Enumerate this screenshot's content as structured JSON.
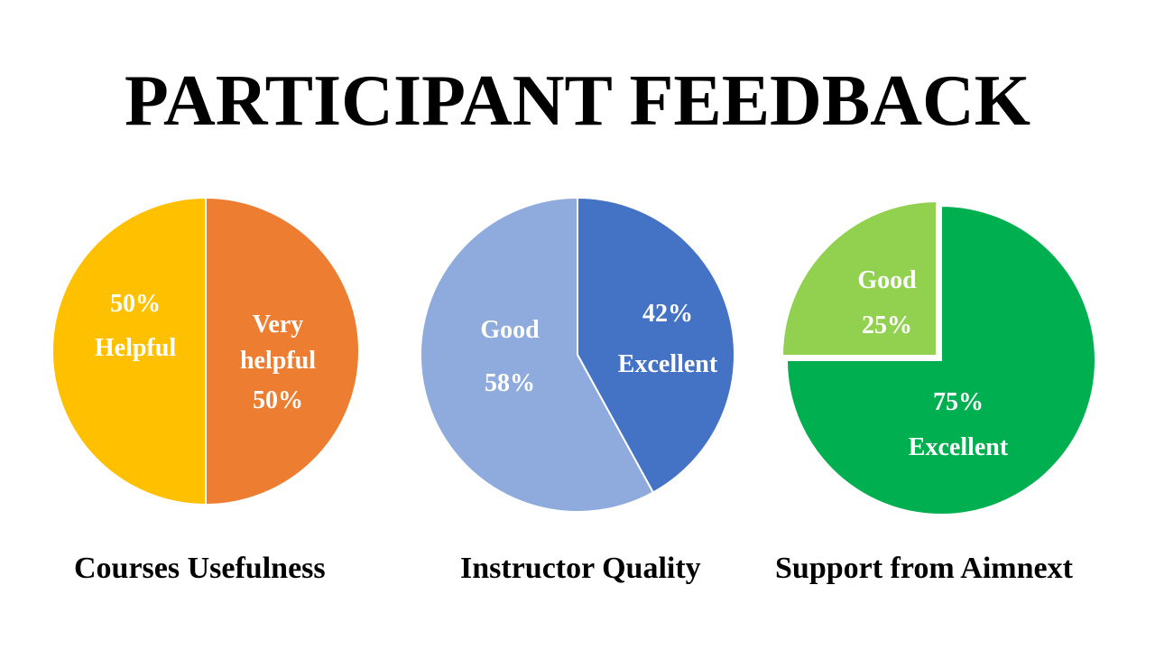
{
  "title": "PARTICIPANT FEEDBACK",
  "chart_data": [
    {
      "type": "pie",
      "caption": "Courses Usefulness",
      "slices": [
        {
          "label_lines": [
            "Very",
            "helpful",
            "50%"
          ],
          "value": 50,
          "color": "#ED7D31"
        },
        {
          "label_lines": [
            "50%",
            "Helpful"
          ],
          "value": 50,
          "color": "#FFC000"
        }
      ]
    },
    {
      "type": "pie",
      "caption": "Instructor Quality",
      "slices": [
        {
          "label_lines": [
            "42%",
            "Excellent"
          ],
          "value": 42,
          "color": "#4472C4"
        },
        {
          "label_lines": [
            "Good",
            "58%"
          ],
          "value": 58,
          "color": "#8FAADC"
        }
      ]
    },
    {
      "type": "pie",
      "caption": "Support from Aimnext",
      "slices": [
        {
          "label_lines": [
            "75%",
            "Excellent"
          ],
          "value": 75,
          "color": "#00B050"
        },
        {
          "label_lines": [
            "Good",
            "25%"
          ],
          "value": 25,
          "color": "#92D050",
          "exploded": true
        }
      ]
    }
  ]
}
